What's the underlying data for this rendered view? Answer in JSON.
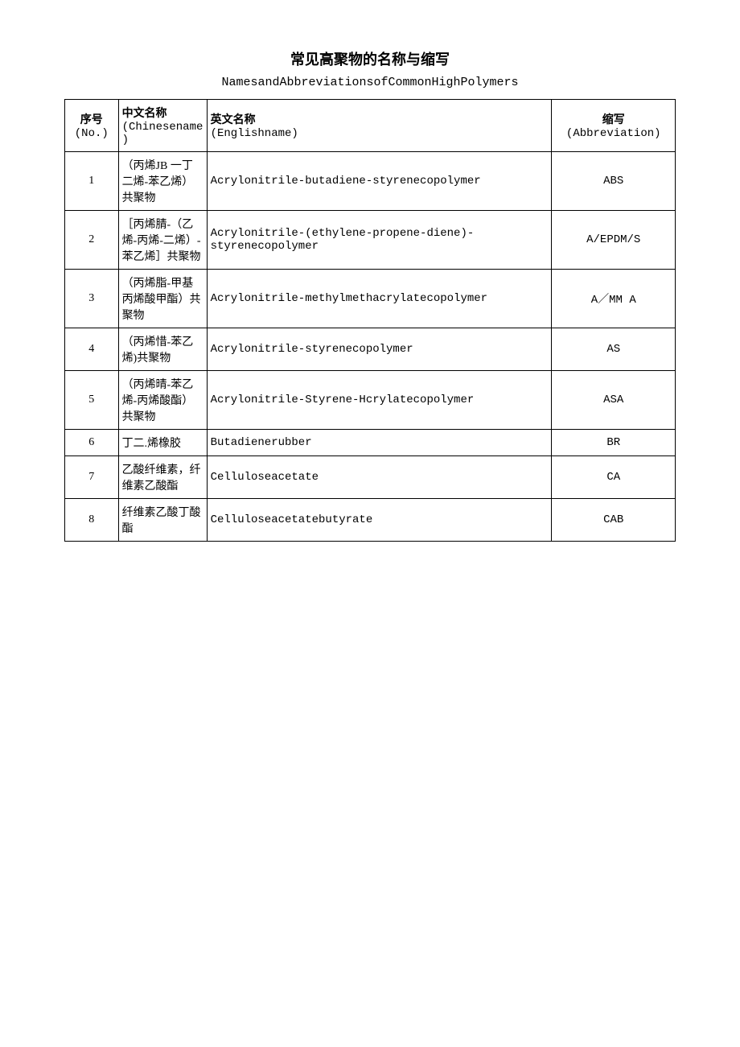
{
  "title": "常见高聚物的名称与缩写",
  "subtitle": "NamesandAbbreviationsofCommonHighPolymers",
  "headers": {
    "no_cn": "序号",
    "no_en": "(No.)",
    "cn_cn": "中文名称",
    "cn_en": "(Chinesename)",
    "en_cn": "英文名称",
    "en_en": "(Englishname)",
    "abbr_cn": "缩写",
    "abbr_en": "(Abbreviation)"
  },
  "rows": [
    {
      "no": "1",
      "cn": "（丙烯JB 一丁二烯-苯乙烯）共聚物",
      "en": "Acrylonitrile-butadiene-styrenecopolymer",
      "abbr": "ABS"
    },
    {
      "no": "2",
      "cn": "［丙烯腈-（乙烯-丙烯-二烯）-苯乙烯］共聚物",
      "en": "Acrylonitrile-(ethylene-propene-diene)-styrenecopolymer",
      "abbr": "A/EPDM/S"
    },
    {
      "no": "3",
      "cn": "（丙烯脂-甲基丙烯酸甲酯）共聚物",
      "en": "Acrylonitrile-methylmethacrylatecopolymer",
      "abbr": "A／MM A"
    },
    {
      "no": "4",
      "cn": "（丙烯惜-苯乙烯)共聚物",
      "en": "Acrylonitrile-styrenecopolymer",
      "abbr": "AS"
    },
    {
      "no": "5",
      "cn": "（丙烯晴-苯乙烯-丙烯酸酯）共聚物",
      "en": "Acrylonitrile-Styrene-Hcrylatecopolymer",
      "abbr": "ASA"
    },
    {
      "no": "6",
      "cn": "丁二.烯橡胶",
      "en": "Butadienerubber",
      "abbr": "BR"
    },
    {
      "no": "7",
      "cn": "乙酸纤维素，纤维素乙酸酯",
      "en": "Celluloseacetate",
      "abbr": "CA"
    },
    {
      "no": "8",
      "cn": "纤维素乙酸丁酸酯",
      "en": "Celluloseacetatebutyrate",
      "abbr": "CAB"
    }
  ]
}
